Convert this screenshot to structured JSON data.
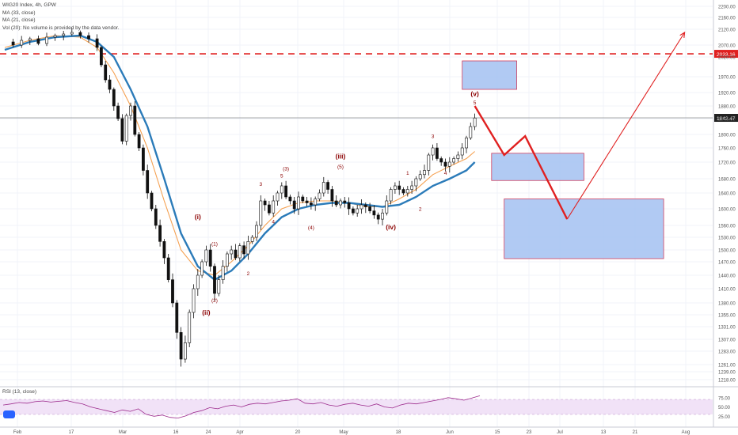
{
  "legend": {
    "title": "WIG20 Index, 4h, GPW",
    "ma33": "MA (33, close)",
    "ma21": "MA (21, close)",
    "vol": "Vol (20): No volume is provided by the data vendor."
  },
  "rsi_label": "RSI (13, close)",
  "colors": {
    "up": "#ffffff",
    "down": "#111111",
    "ma33": "#2b7bb9",
    "ma21": "#f5a050",
    "resistance": "#e02020",
    "projection": "#e02020",
    "box_fill": "#a8c4f2",
    "box_stroke": "#d04060",
    "wave": "#8b0000",
    "rsi": "#9c2a8c",
    "rsi_band": "#f1e2f7"
  },
  "chart_data": {
    "type": "candlestick",
    "yaxis_ticks": [
      2200,
      2160,
      2120,
      2070,
      2020,
      1970,
      1920,
      1880,
      1840,
      1800,
      1760,
      1720,
      1680,
      1640,
      1600,
      1560,
      1530,
      1500,
      1470,
      1440,
      1410,
      1380,
      1355,
      1331,
      1307,
      1283,
      1261,
      1239,
      1218
    ],
    "ytick_labels": [
      "2200.00",
      "2160.00",
      "2120.00",
      "2070.00",
      "2020.00",
      "1970.00",
      "1920.00",
      "1880.00",
      "1840.00",
      "1800.00",
      "1760.00",
      "1720.00",
      "1680.00",
      "1640.00",
      "1600.00",
      "1560.00",
      "1530.00",
      "1500.00",
      "1470.00",
      "1440.00",
      "1410.00",
      "1380.00",
      "1355.00",
      "1331.00",
      "1307.00",
      "1283.00",
      "1261.00",
      "1239.00",
      "1218.00"
    ],
    "xaxis_ticks": [
      "Feb",
      "17",
      "Mar",
      "16",
      "24",
      "Apr",
      "20",
      "May",
      "18",
      "Jun",
      "15",
      "23",
      "Jul",
      "13",
      "21",
      "Aug"
    ],
    "resistance": {
      "value": 2033.16,
      "label": "2033.16"
    },
    "last_price": {
      "value": 1842.47,
      "label": "1842.47"
    },
    "price_path": [
      [
        0,
        2080
      ],
      [
        2,
        2070
      ],
      [
        4,
        2085
      ],
      [
        6,
        2090
      ],
      [
        8,
        2075
      ],
      [
        10,
        2095
      ],
      [
        12,
        2100
      ],
      [
        14,
        2105
      ],
      [
        16,
        2110
      ],
      [
        18,
        2100
      ],
      [
        20,
        2090
      ],
      [
        22,
        2060
      ],
      [
        23,
        2000
      ],
      [
        24,
        1960
      ],
      [
        25,
        1930
      ],
      [
        26,
        1880
      ],
      [
        27,
        1840
      ],
      [
        28,
        1780
      ],
      [
        29,
        1850
      ],
      [
        30,
        1880
      ],
      [
        31,
        1800
      ],
      [
        32,
        1760
      ],
      [
        33,
        1700
      ],
      [
        34,
        1640
      ],
      [
        35,
        1600
      ],
      [
        36,
        1560
      ],
      [
        37,
        1520
      ],
      [
        38,
        1480
      ],
      [
        39,
        1430
      ],
      [
        40,
        1380
      ],
      [
        41,
        1320
      ],
      [
        42,
        1270
      ],
      [
        43,
        1300
      ],
      [
        44,
        1360
      ],
      [
        45,
        1410
      ],
      [
        46,
        1440
      ],
      [
        47,
        1470
      ],
      [
        48,
        1500
      ],
      [
        49,
        1460
      ],
      [
        50,
        1400
      ],
      [
        51,
        1430
      ],
      [
        52,
        1460
      ],
      [
        53,
        1490
      ],
      [
        54,
        1500
      ],
      [
        55,
        1480
      ],
      [
        56,
        1510
      ],
      [
        57,
        1490
      ],
      [
        58,
        1520
      ],
      [
        59,
        1530
      ],
      [
        60,
        1560
      ],
      [
        61,
        1620
      ],
      [
        62,
        1610
      ],
      [
        63,
        1590
      ],
      [
        64,
        1620
      ],
      [
        65,
        1640
      ],
      [
        66,
        1660
      ],
      [
        67,
        1630
      ],
      [
        68,
        1620
      ],
      [
        69,
        1600
      ],
      [
        70,
        1630
      ],
      [
        71,
        1620
      ],
      [
        72,
        1615
      ],
      [
        73,
        1610
      ],
      [
        74,
        1625
      ],
      [
        75,
        1640
      ],
      [
        76,
        1670
      ],
      [
        77,
        1650
      ],
      [
        78,
        1620
      ],
      [
        79,
        1610
      ],
      [
        80,
        1620
      ],
      [
        81,
        1615
      ],
      [
        82,
        1600
      ],
      [
        83,
        1590
      ],
      [
        84,
        1600
      ],
      [
        85,
        1610
      ],
      [
        86,
        1605
      ],
      [
        87,
        1595
      ],
      [
        88,
        1585
      ],
      [
        89,
        1575
      ],
      [
        90,
        1590
      ],
      [
        91,
        1620
      ],
      [
        92,
        1650
      ],
      [
        93,
        1660
      ],
      [
        94,
        1650
      ],
      [
        95,
        1640
      ],
      [
        96,
        1650
      ],
      [
        97,
        1660
      ],
      [
        98,
        1680
      ],
      [
        99,
        1690
      ],
      [
        100,
        1700
      ],
      [
        101,
        1740
      ],
      [
        102,
        1760
      ],
      [
        103,
        1730
      ],
      [
        104,
        1720
      ],
      [
        105,
        1710
      ],
      [
        106,
        1720
      ],
      [
        107,
        1730
      ],
      [
        108,
        1740
      ],
      [
        109,
        1760
      ],
      [
        110,
        1790
      ],
      [
        111,
        1820
      ],
      [
        112,
        1842
      ]
    ],
    "ma33_path": [
      [
        0,
        2050
      ],
      [
        6,
        2080
      ],
      [
        12,
        2095
      ],
      [
        18,
        2100
      ],
      [
        22,
        2080
      ],
      [
        26,
        2020
      ],
      [
        30,
        1930
      ],
      [
        34,
        1820
      ],
      [
        38,
        1680
      ],
      [
        42,
        1540
      ],
      [
        46,
        1460
      ],
      [
        50,
        1430
      ],
      [
        54,
        1450
      ],
      [
        58,
        1490
      ],
      [
        62,
        1540
      ],
      [
        66,
        1580
      ],
      [
        70,
        1600
      ],
      [
        74,
        1610
      ],
      [
        78,
        1615
      ],
      [
        82,
        1615
      ],
      [
        86,
        1610
      ],
      [
        90,
        1605
      ],
      [
        94,
        1610
      ],
      [
        98,
        1630
      ],
      [
        102,
        1660
      ],
      [
        106,
        1680
      ],
      [
        110,
        1700
      ],
      [
        112,
        1720
      ]
    ],
    "ma21_path": [
      [
        0,
        2060
      ],
      [
        6,
        2085
      ],
      [
        12,
        2100
      ],
      [
        18,
        2095
      ],
      [
        22,
        2060
      ],
      [
        26,
        1980
      ],
      [
        30,
        1880
      ],
      [
        34,
        1760
      ],
      [
        38,
        1620
      ],
      [
        42,
        1500
      ],
      [
        46,
        1450
      ],
      [
        50,
        1440
      ],
      [
        54,
        1470
      ],
      [
        58,
        1510
      ],
      [
        62,
        1560
      ],
      [
        66,
        1600
      ],
      [
        70,
        1615
      ],
      [
        74,
        1620
      ],
      [
        78,
        1620
      ],
      [
        82,
        1615
      ],
      [
        86,
        1605
      ],
      [
        90,
        1605
      ],
      [
        94,
        1625
      ],
      [
        98,
        1650
      ],
      [
        102,
        1690
      ],
      [
        106,
        1710
      ],
      [
        110,
        1730
      ],
      [
        112,
        1750
      ]
    ],
    "projection_path": [
      {
        "x": 112,
        "v": 1880
      },
      {
        "x": 119,
        "v": 1740
      },
      {
        "x": 124,
        "v": 1795
      },
      {
        "x": 134,
        "v": 1575
      },
      {
        "x": 162,
        "v": 2110
      }
    ],
    "boxes": [
      {
        "x0": 109,
        "x1": 122,
        "v0": 1930,
        "v1": 2010
      },
      {
        "x0": 116,
        "x1": 138,
        "v0": 1675,
        "v1": 1745
      },
      {
        "x0": 119,
        "x1": 157,
        "v0": 1478,
        "v1": 1625
      }
    ],
    "wave_labels": [
      {
        "text": "(i)",
        "x": 46,
        "v": 1575,
        "big": true
      },
      {
        "text": "(1)",
        "x": 50,
        "v": 1510,
        "big": false
      },
      {
        "text": "(2)",
        "x": 50,
        "v": 1382,
        "big": false
      },
      {
        "text": "(ii)",
        "x": 48,
        "v": 1355,
        "big": true
      },
      {
        "text": "2",
        "x": 58,
        "v": 1440,
        "big": false
      },
      {
        "text": "3",
        "x": 61,
        "v": 1660,
        "big": false
      },
      {
        "text": "4",
        "x": 64,
        "v": 1565,
        "big": false
      },
      {
        "text": "(3)",
        "x": 67,
        "v": 1700,
        "big": false
      },
      {
        "text": "5",
        "x": 66,
        "v": 1683,
        "big": false
      },
      {
        "text": "(4)",
        "x": 73,
        "v": 1550,
        "big": false
      },
      {
        "text": "(iii)",
        "x": 80,
        "v": 1730,
        "big": true
      },
      {
        "text": "(5)",
        "x": 80,
        "v": 1705,
        "big": false
      },
      {
        "text": "1",
        "x": 96,
        "v": 1690,
        "big": false
      },
      {
        "text": "(iv)",
        "x": 92,
        "v": 1550,
        "big": true
      },
      {
        "text": "2",
        "x": 99,
        "v": 1595,
        "big": false
      },
      {
        "text": "3",
        "x": 102,
        "v": 1790,
        "big": false
      },
      {
        "text": "4",
        "x": 105,
        "v": 1690,
        "big": false
      },
      {
        "text": "5",
        "x": 112,
        "v": 1885,
        "big": false
      },
      {
        "text": "(v)",
        "x": 112,
        "v": 1910,
        "big": true
      }
    ],
    "rsi": {
      "ticks": [
        75,
        50,
        25
      ],
      "tick_labels": [
        "75.00",
        "50.00",
        "25.00"
      ],
      "band": [
        30,
        70
      ],
      "values": [
        55,
        58,
        62,
        60,
        64,
        66,
        63,
        65,
        67,
        62,
        58,
        50,
        45,
        40,
        35,
        42,
        38,
        45,
        30,
        25,
        28,
        22,
        20,
        26,
        35,
        40,
        48,
        45,
        52,
        55,
        50,
        57,
        60,
        58,
        62,
        66,
        68,
        72,
        60,
        58,
        62,
        55,
        52,
        57,
        60,
        55,
        52,
        58,
        50,
        47,
        55,
        60,
        58,
        62,
        66,
        70,
        75,
        72,
        68,
        74,
        80
      ]
    }
  }
}
